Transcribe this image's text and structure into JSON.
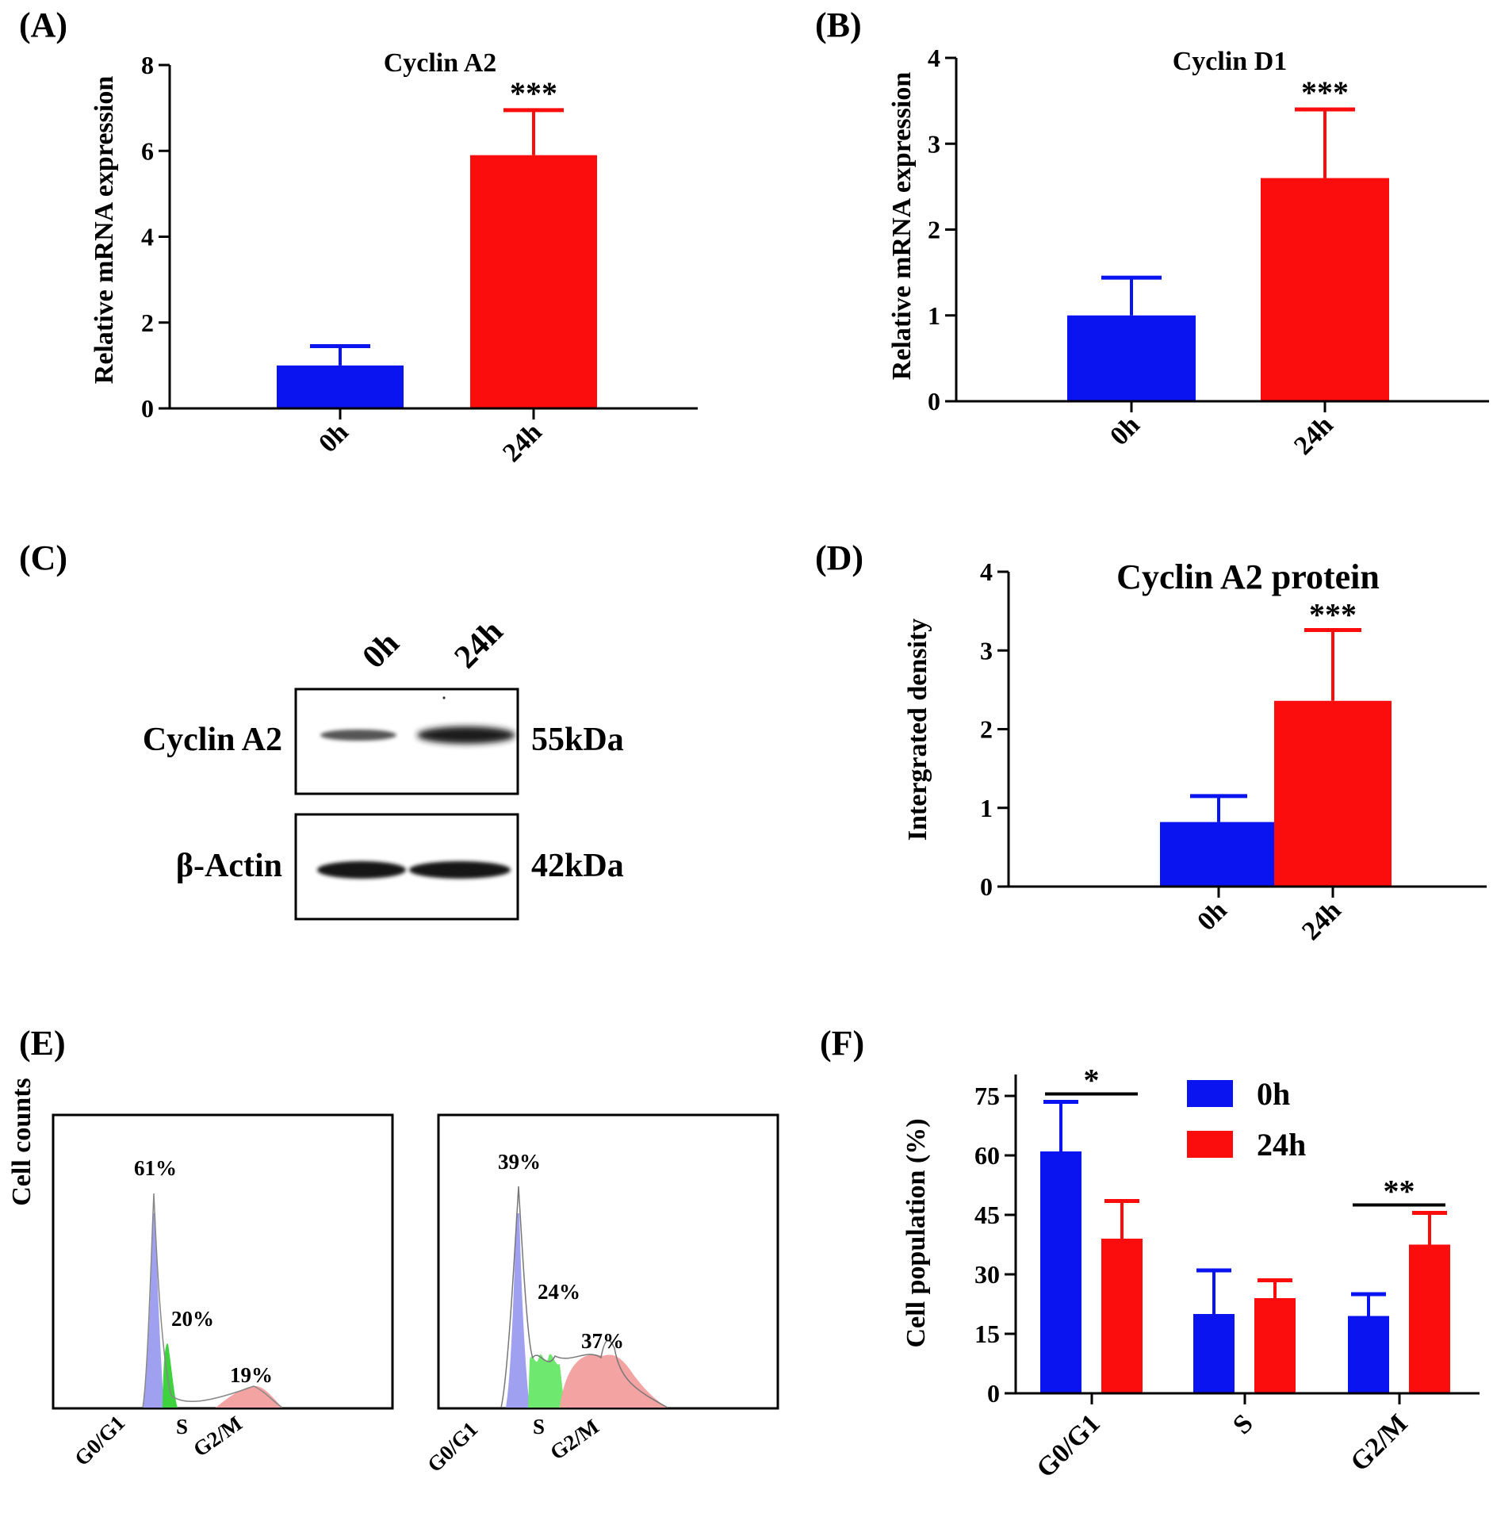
{
  "figure": {
    "panels": {
      "A": "(A)",
      "B": "(B)",
      "C": "(C)",
      "D": "(D)",
      "E": "(E)",
      "F": "(F)"
    },
    "colors": {
      "blue": "#0a14f0",
      "red": "#fc0d0d",
      "axis": "#000000"
    },
    "western_blot": {
      "lanes": [
        "0h",
        "24h"
      ],
      "bands": [
        {
          "name": "Cyclin A2",
          "size": "55kDa"
        },
        {
          "name": "β-Actin",
          "size": "42kDa"
        }
      ]
    },
    "flow": {
      "ylabel": "Cell counts",
      "xlabels": [
        "G0/G1",
        "S",
        "G2/M"
      ],
      "samples": [
        {
          "percents": [
            "61%",
            "20%",
            "19%"
          ]
        },
        {
          "percents": [
            "39%",
            "24%",
            "37%"
          ]
        }
      ]
    }
  },
  "chart_data": [
    {
      "id": "A",
      "type": "bar",
      "title": "Cyclin A2",
      "ylabel": "Relative mRNA expression",
      "xlabel": "",
      "categories": [
        "0h",
        "24h"
      ],
      "values": [
        1.0,
        5.9
      ],
      "errors": [
        0.45,
        1.05
      ],
      "ylim": [
        0,
        8
      ],
      "yticks": [
        "0",
        "2",
        "4",
        "6",
        "8"
      ],
      "significance": [
        "",
        "***"
      ]
    },
    {
      "id": "B",
      "type": "bar",
      "title": "Cyclin D1",
      "ylabel": "Relative mRNA expression",
      "xlabel": "",
      "categories": [
        "0h",
        "24h"
      ],
      "values": [
        1.0,
        2.6
      ],
      "errors": [
        0.44,
        0.8
      ],
      "ylim": [
        0,
        4
      ],
      "yticks": [
        "0",
        "1",
        "2",
        "3",
        "4"
      ],
      "significance": [
        "",
        "***"
      ]
    },
    {
      "id": "D",
      "type": "bar",
      "title": "Cyclin A2 protein",
      "ylabel": "Intergrated density",
      "xlabel": "",
      "categories": [
        "0h",
        "24h"
      ],
      "values": [
        0.82,
        2.36
      ],
      "errors": [
        0.33,
        0.9
      ],
      "ylim": [
        0,
        4
      ],
      "yticks": [
        "0",
        "1",
        "2",
        "3",
        "4"
      ],
      "significance": [
        "",
        "***"
      ]
    },
    {
      "id": "F",
      "type": "bar",
      "title": "",
      "ylabel": "Cell population (%)",
      "xlabel": "",
      "categories": [
        "G0/G1",
        "S",
        "G2/M"
      ],
      "series": [
        {
          "name": "0h",
          "values": [
            61,
            20,
            19.5
          ],
          "errors": [
            12.5,
            11,
            5.5
          ]
        },
        {
          "name": "24h",
          "values": [
            39,
            24,
            37.5
          ],
          "errors": [
            9.5,
            4.5,
            8
          ]
        }
      ],
      "ylim": [
        0,
        80
      ],
      "yticks": [
        "0",
        "15",
        "30",
        "45",
        "60",
        "75"
      ],
      "significance": [
        "*",
        "",
        "**"
      ],
      "legend": "top-right"
    }
  ]
}
